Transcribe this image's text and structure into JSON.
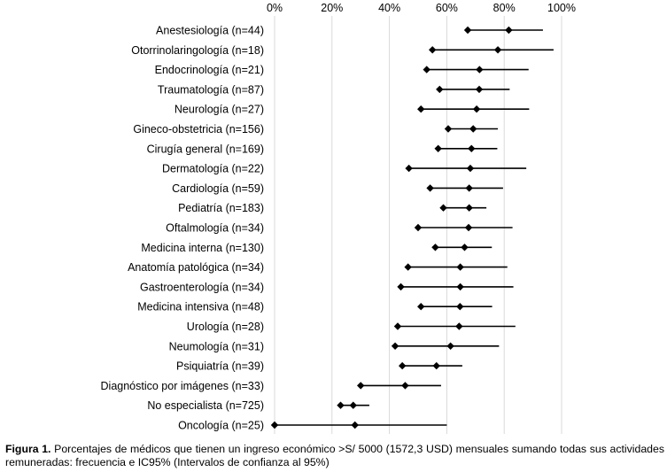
{
  "caption": {
    "label": "Figura 1.",
    "text": "Porcentajes de médicos que tienen un ingreso económico >S/ 5000 (1572,3 USD) mensuales sumando todas sus actividades remuneradas: frecuencia e IC95% (Intervalos de confianza al 95%)"
  },
  "chart_data": {
    "type": "forest",
    "x_ticks": [
      "0%",
      "20%",
      "40%",
      "60%",
      "80%",
      "100%"
    ],
    "xlim": [
      0,
      100
    ],
    "grid": true,
    "categories": [
      "Anestesiología (n=44)",
      "Otorrinolaringología (n=18)",
      "Endocrinología (n=21)",
      "Traumatología (n=87)",
      "Neurología (n=27)",
      "Gineco-obstetricia (n=156)",
      "Cirugía general (n=169)",
      "Dermatología (n=22)",
      "Cardiología (n=59)",
      "Pediatría (n=183)",
      "Oftalmología (n=34)",
      "Medicina interna (n=130)",
      "Anatomía patológica (n=34)",
      "Gastroenterología (n=34)",
      "Medicina intensiva (n=48)",
      "Urología  (n=28)",
      "Neumología (n=31)",
      "Psiquiatría (n=39)",
      "Diagnóstico por imágenes (n=33)",
      "No especialista (n=725)",
      "Oncología (n=25)"
    ],
    "point": [
      81.6,
      77.8,
      71.4,
      71.3,
      70.4,
      69.2,
      68.6,
      68.2,
      67.8,
      67.8,
      67.6,
      66.2,
      64.7,
      64.7,
      64.6,
      64.3,
      61.3,
      56.4,
      45.5,
      27.4,
      28.0
    ],
    "lower": [
      67.3,
      55.0,
      53.0,
      57.5,
      51.0,
      60.5,
      57.0,
      46.8,
      54.2,
      58.8,
      50.0,
      56.0,
      46.5,
      44.0,
      51.0,
      42.9,
      42.0,
      44.5,
      30.0,
      23.0,
      0.0
    ],
    "upper": [
      93.5,
      97.2,
      88.5,
      81.9,
      88.7,
      77.8,
      77.6,
      87.7,
      79.6,
      73.8,
      82.9,
      75.7,
      81.1,
      83.2,
      75.8,
      83.9,
      78.2,
      65.4,
      58.0,
      33.0,
      60.0
    ]
  }
}
